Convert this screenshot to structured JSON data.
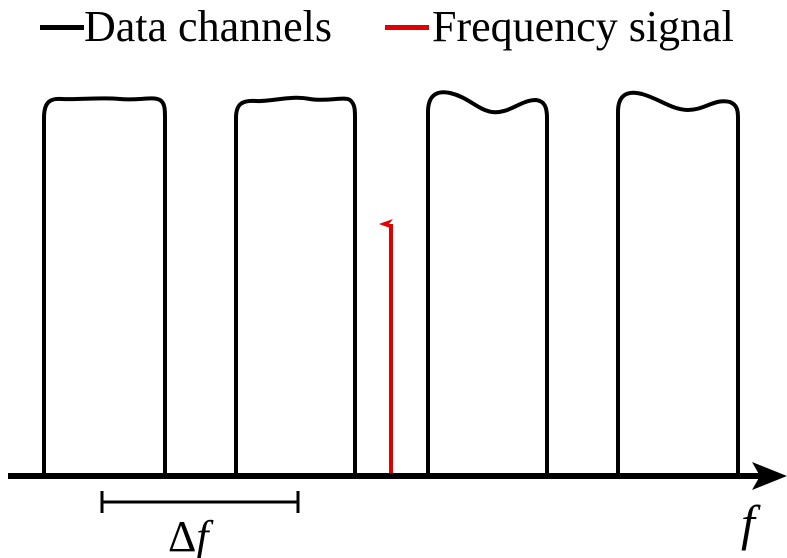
{
  "legend": {
    "data_channels": "Data channels",
    "frequency_signal": "Frequency signal"
  },
  "axis": {
    "label": "f"
  },
  "spacing": {
    "delta": "Δ",
    "variable": "f"
  },
  "colors": {
    "data_channels": "#000000",
    "frequency_signal": "#e00000",
    "axis": "#000000"
  },
  "channel_count": 4
}
